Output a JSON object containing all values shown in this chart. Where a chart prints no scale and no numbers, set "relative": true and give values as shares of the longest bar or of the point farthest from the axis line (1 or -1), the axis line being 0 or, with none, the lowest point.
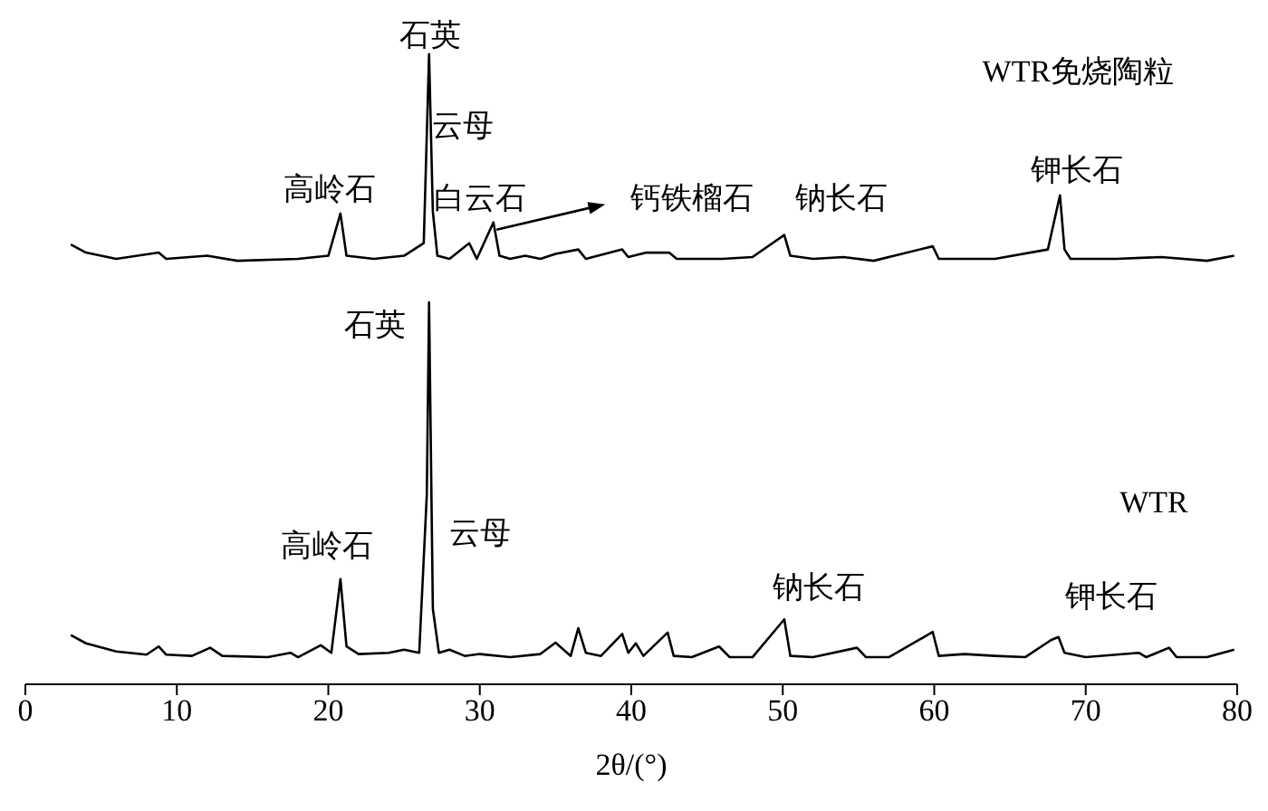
{
  "chart_data": {
    "type": "line",
    "relative": true,
    "xlabel": "2θ/(°)",
    "xlim": [
      0,
      80
    ],
    "xticks": [
      0,
      10,
      20,
      30,
      40,
      50,
      60,
      70,
      80
    ],
    "marker": "none",
    "line_style": "solid",
    "series": [
      {
        "color": "#000000",
        "x": [
          3,
          4,
          6,
          8.8,
          9.3,
          12,
          14,
          18,
          20,
          20.8,
          21.2,
          23,
          25,
          26.3,
          26.65,
          26.9,
          27.2,
          28,
          29.3,
          29.8,
          30.9,
          31.3,
          32,
          33,
          34,
          35,
          36.5,
          37,
          39.4,
          39.8,
          41,
          42.5,
          43,
          46,
          48,
          50.1,
          50.5,
          52,
          54,
          56,
          59.9,
          60.3,
          64,
          67.5,
          68.3,
          68.6,
          69,
          72,
          75,
          78,
          79.8
        ],
        "values": [
          0.698,
          0.685,
          0.675,
          0.685,
          0.675,
          0.68,
          0.672,
          0.675,
          0.68,
          0.747,
          0.68,
          0.675,
          0.68,
          0.7,
          1,
          0.75,
          0.68,
          0.675,
          0.7,
          0.675,
          0.733,
          0.68,
          0.675,
          0.68,
          0.675,
          0.683,
          0.69,
          0.675,
          0.69,
          0.678,
          0.685,
          0.685,
          0.675,
          0.675,
          0.678,
          0.713,
          0.68,
          0.675,
          0.678,
          0.672,
          0.695,
          0.675,
          0.675,
          0.69,
          0.776,
          0.69,
          0.675,
          0.675,
          0.678,
          0.672,
          0.68
        ]
      },
      {
        "color": "#000000",
        "x": [
          3,
          4,
          6,
          8,
          8.8,
          9.3,
          11,
          12.2,
          13,
          16,
          17.5,
          18,
          19.5,
          20.2,
          20.8,
          21.2,
          22,
          24,
          25,
          26,
          26.5,
          26.65,
          26.9,
          27.3,
          28,
          29,
          30,
          32,
          34,
          35,
          36,
          36.5,
          37,
          38,
          39.4,
          39.8,
          40.3,
          40.8,
          42.4,
          42.8,
          44,
          45.8,
          46.5,
          48,
          50.1,
          50.5,
          52,
          54.9,
          55.5,
          57,
          59.9,
          60.3,
          62,
          64,
          66,
          67.7,
          68.2,
          68.6,
          70,
          73.5,
          74,
          75.5,
          76,
          78,
          79.8
        ],
        "values": [
          0.078,
          0.065,
          0.052,
          0.047,
          0.06,
          0.047,
          0.045,
          0.058,
          0.045,
          0.043,
          0.05,
          0.043,
          0.062,
          0.05,
          0.167,
          0.06,
          0.048,
          0.05,
          0.055,
          0.05,
          0.3,
          0.606,
          0.12,
          0.05,
          0.055,
          0.045,
          0.048,
          0.043,
          0.048,
          0.066,
          0.045,
          0.089,
          0.05,
          0.045,
          0.08,
          0.05,
          0.065,
          0.045,
          0.082,
          0.045,
          0.043,
          0.06,
          0.043,
          0.043,
          0.103,
          0.045,
          0.043,
          0.058,
          0.043,
          0.043,
          0.083,
          0.045,
          0.048,
          0.045,
          0.043,
          0.07,
          0.075,
          0.05,
          0.043,
          0.05,
          0.043,
          0.058,
          0.043,
          0.043,
          0.055
        ]
      }
    ],
    "annotations": [
      "高岭石",
      "石英",
      "云母",
      "白云石",
      "钙铁榴石",
      "钠长石",
      "钾长石",
      "WTR免烧陶粒",
      "石英",
      "云母",
      "高岭石",
      "钠长石",
      "钾长石",
      "WTR"
    ]
  }
}
